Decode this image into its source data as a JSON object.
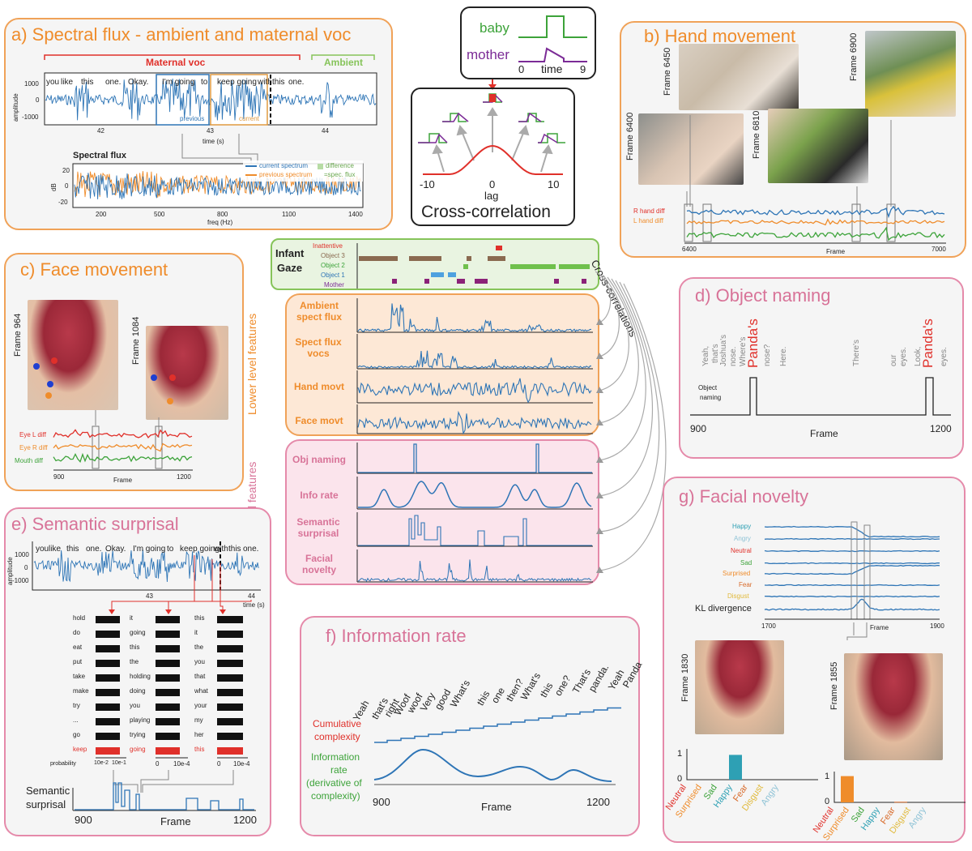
{
  "colors": {
    "orange": "#ef8c2b",
    "pink": "#d87398",
    "blue": "#2e75b6",
    "red": "#e0302a",
    "green": "#3da33a",
    "purple": "#7b2b96",
    "brown": "#8a6a50"
  },
  "panel_a": {
    "title": "a) Spectral flux - ambient and maternal voc",
    "maternal": "Maternal voc",
    "ambient": "Ambient",
    "words": [
      "you",
      "like",
      "this",
      "one.",
      "Okay.",
      "I'm going",
      "to",
      "keep going",
      "with",
      "this",
      "one."
    ],
    "yticks": [
      "1000",
      "0",
      "-1000"
    ],
    "ylabel": "amplitude",
    "xticks": [
      "42",
      "43",
      "44"
    ],
    "xlabel": "time (s)",
    "previous": "previous",
    "current": "current",
    "flux_title": "Spectral flux",
    "flux_yticks": [
      "20",
      "0",
      "-20"
    ],
    "flux_ylabel": "dB",
    "flux_xticks": [
      "200",
      "500",
      "800",
      "1100",
      "1400"
    ],
    "flux_xlabel": "freq (Hz)",
    "legend": [
      "current spectrum",
      "previous spectrum",
      "difference",
      "=spec. flux"
    ]
  },
  "xcorr": {
    "baby": "baby",
    "mother": "mother",
    "t0": "0",
    "time": "time",
    "t9": "9",
    "ticks": [
      "-10",
      "0",
      "10"
    ],
    "lag": "lag",
    "title": "Cross-correlation"
  },
  "panel_b": {
    "title": "b) Hand movement",
    "frames": [
      "Frame 6450",
      "Frame 6900",
      "Frame 6400",
      "Frame 6810"
    ],
    "labels": [
      "R hand diff",
      "L hand diff"
    ],
    "xticks": [
      "6400",
      "7000"
    ],
    "xlabel": "Frame"
  },
  "panel_c": {
    "title": "c) Face movement",
    "frames": [
      "Frame 964",
      "Frame 1084"
    ],
    "labels": [
      "Eye L diff",
      "Eye R diff",
      "Mouth diff"
    ],
    "xticks": [
      "900",
      "1200"
    ],
    "xlabel": "Frame"
  },
  "gaze": {
    "title": "Infant Gaze",
    "rows": [
      "Inattentive",
      "Object 3",
      "Object 2",
      "Object 1",
      "Mother"
    ],
    "xcorr_label": "Cross-correlations"
  },
  "features": {
    "lower_group": "Lower level features",
    "higher_group": "Higher level features",
    "lower": [
      "Ambient spect flux",
      "Spect flux vocs",
      "Hand movt",
      "Face movt"
    ],
    "higher": [
      "Obj naming",
      "Info rate",
      "Semantic surprisal",
      "Facial novelty"
    ]
  },
  "panel_d": {
    "title": "d) Object naming",
    "words": [
      "Yeah,",
      "that's",
      "Joshua's",
      "nose.",
      "Where's",
      "Panda's",
      "nose?",
      "Here.",
      "There's",
      "our",
      "eyes.",
      "Look,",
      "Panda's",
      "eyes."
    ],
    "label1": "Object",
    "label2": "naming",
    "xticks": [
      "900",
      "1200"
    ],
    "xlabel": "Frame"
  },
  "panel_e": {
    "title": "e) Semantic surprisal",
    "words": [
      "you",
      "like",
      "this",
      "one.",
      "Okay.",
      "I'm going",
      "to",
      "keep going",
      "with",
      "this",
      "one."
    ],
    "yticks": [
      "1000",
      "0",
      "-1000"
    ],
    "ylabel": "amplitude",
    "xticks": [
      "43",
      "44"
    ],
    "xlabel": "time (s)",
    "col1": [
      "hold",
      "do",
      "eat",
      "put",
      "take",
      "make",
      "try",
      "...",
      "go",
      "keep"
    ],
    "col2": [
      "it",
      "going",
      "this",
      "the",
      "holding",
      "doing",
      "you",
      "playing",
      "trying",
      "going"
    ],
    "col3": [
      "this",
      "it",
      "the",
      "you",
      "that",
      "what",
      "your",
      "my",
      "her",
      "this"
    ],
    "probability": "probability",
    "prob_ticks": [
      "10e-2",
      "10e-1",
      "0",
      "10e-4",
      "0",
      "10e-4"
    ],
    "surprisal1": "Semantic",
    "surprisal2": "surprisal",
    "x900": "900",
    "frame": "Frame",
    "x1200": "1200"
  },
  "panel_f": {
    "title": "f) Information rate",
    "words": [
      "Yeah",
      "that's",
      "right",
      "Woof",
      "woof",
      "Very",
      "good",
      "What's",
      "this",
      "one",
      "then?",
      "What's",
      "this",
      "one?",
      "That's",
      "panda.",
      "Yeah",
      "Panda"
    ],
    "cumulative1": "Cumulative",
    "cumulative2": "complexity",
    "info": [
      "Information",
      "rate",
      "(derivative of",
      "complexity)"
    ],
    "xticks": [
      "900",
      "1200"
    ],
    "xlabel": "Frame"
  },
  "panel_g": {
    "title": "g) Facial novelty",
    "emotions": [
      "Happy",
      "Angry",
      "Neutral",
      "Sad",
      "Surprised",
      "Fear",
      "Disgust"
    ],
    "kl": "KL divergence",
    "xticks": [
      "1700",
      "1900"
    ],
    "xlabel": "Frame",
    "frames": [
      "Frame 1830",
      "Frame 1855"
    ],
    "bar_ticks": [
      "1",
      "0"
    ],
    "bar_labels": [
      "Neutral",
      "Surprised",
      "Sad",
      "Happy",
      "Fear",
      "Disgust",
      "Angry"
    ],
    "bars1": [
      0,
      0,
      0,
      0.85,
      0,
      0,
      0
    ],
    "bars2": [
      0,
      0.9,
      0,
      0,
      0.02,
      0,
      0
    ]
  }
}
